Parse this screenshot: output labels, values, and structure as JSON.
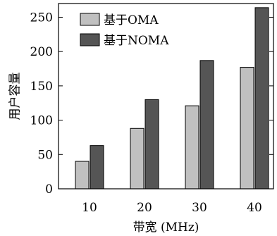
{
  "chart_data": {
    "type": "bar",
    "categories": [
      "10",
      "20",
      "30",
      "40"
    ],
    "series": [
      {
        "name": "基于OMA",
        "values": [
          40,
          88,
          121,
          177
        ],
        "color": "#c0c0c0"
      },
      {
        "name": "基于NOMA",
        "values": [
          63,
          130,
          187,
          264
        ],
        "color": "#555555"
      }
    ],
    "xlabel": "带宽 (MHz)",
    "ylabel": "用户容量",
    "ylim": [
      0,
      270
    ],
    "yticks": [
      0,
      50,
      100,
      150,
      200,
      250
    ],
    "grid": false,
    "legend_position": "top-left"
  }
}
